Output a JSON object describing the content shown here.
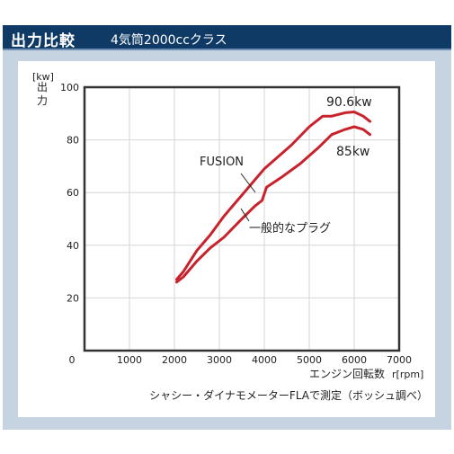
{
  "header": {
    "title": "出力比較",
    "subtitle": "4気筒2000ccクラス"
  },
  "colors": {
    "header_bg": "#0f3a66",
    "frame_bg": "#c6d4e2",
    "line": "#c8232c",
    "grid": "#d6d6d6"
  },
  "chart_data": {
    "type": "line",
    "y_unit": "[kw]",
    "ylabel": "出力",
    "xlabel": "エンジン回転数",
    "x_unit": "r[rpm]",
    "caption": "シャシー・ダイナモメーターFLAで測定（ボッシュ調べ）",
    "xlim": [
      0,
      7000
    ],
    "ylim": [
      0,
      100
    ],
    "x_ticks": [
      "0",
      "1000",
      "2000",
      "3000",
      "4000",
      "5000",
      "6000",
      "7000"
    ],
    "y_ticks": [
      "20",
      "40",
      "60",
      "80",
      "100"
    ],
    "grid": true,
    "series": [
      {
        "name": "FUSION",
        "peak_label": "90.6kw",
        "x": [
          2050,
          2200,
          2500,
          2800,
          3100,
          3400,
          3600,
          3800,
          4000,
          4200,
          4600,
          5000,
          5300,
          5500,
          5800,
          6000,
          6200,
          6350
        ],
        "y": [
          27,
          30,
          38,
          44,
          51,
          57,
          61,
          65,
          69,
          72,
          78,
          85,
          89,
          89,
          90.3,
          90.6,
          89,
          87
        ]
      },
      {
        "name": "一般的なプラグ",
        "peak_label": "85kw",
        "x": [
          2050,
          2200,
          2500,
          2800,
          3100,
          3500,
          3800,
          3950,
          4050,
          4400,
          4800,
          5200,
          5500,
          5800,
          6000,
          6200,
          6350
        ],
        "y": [
          26,
          28,
          34,
          39,
          43,
          50,
          55,
          57,
          62,
          66,
          71,
          77,
          82,
          84,
          85,
          84,
          82
        ]
      }
    ]
  }
}
